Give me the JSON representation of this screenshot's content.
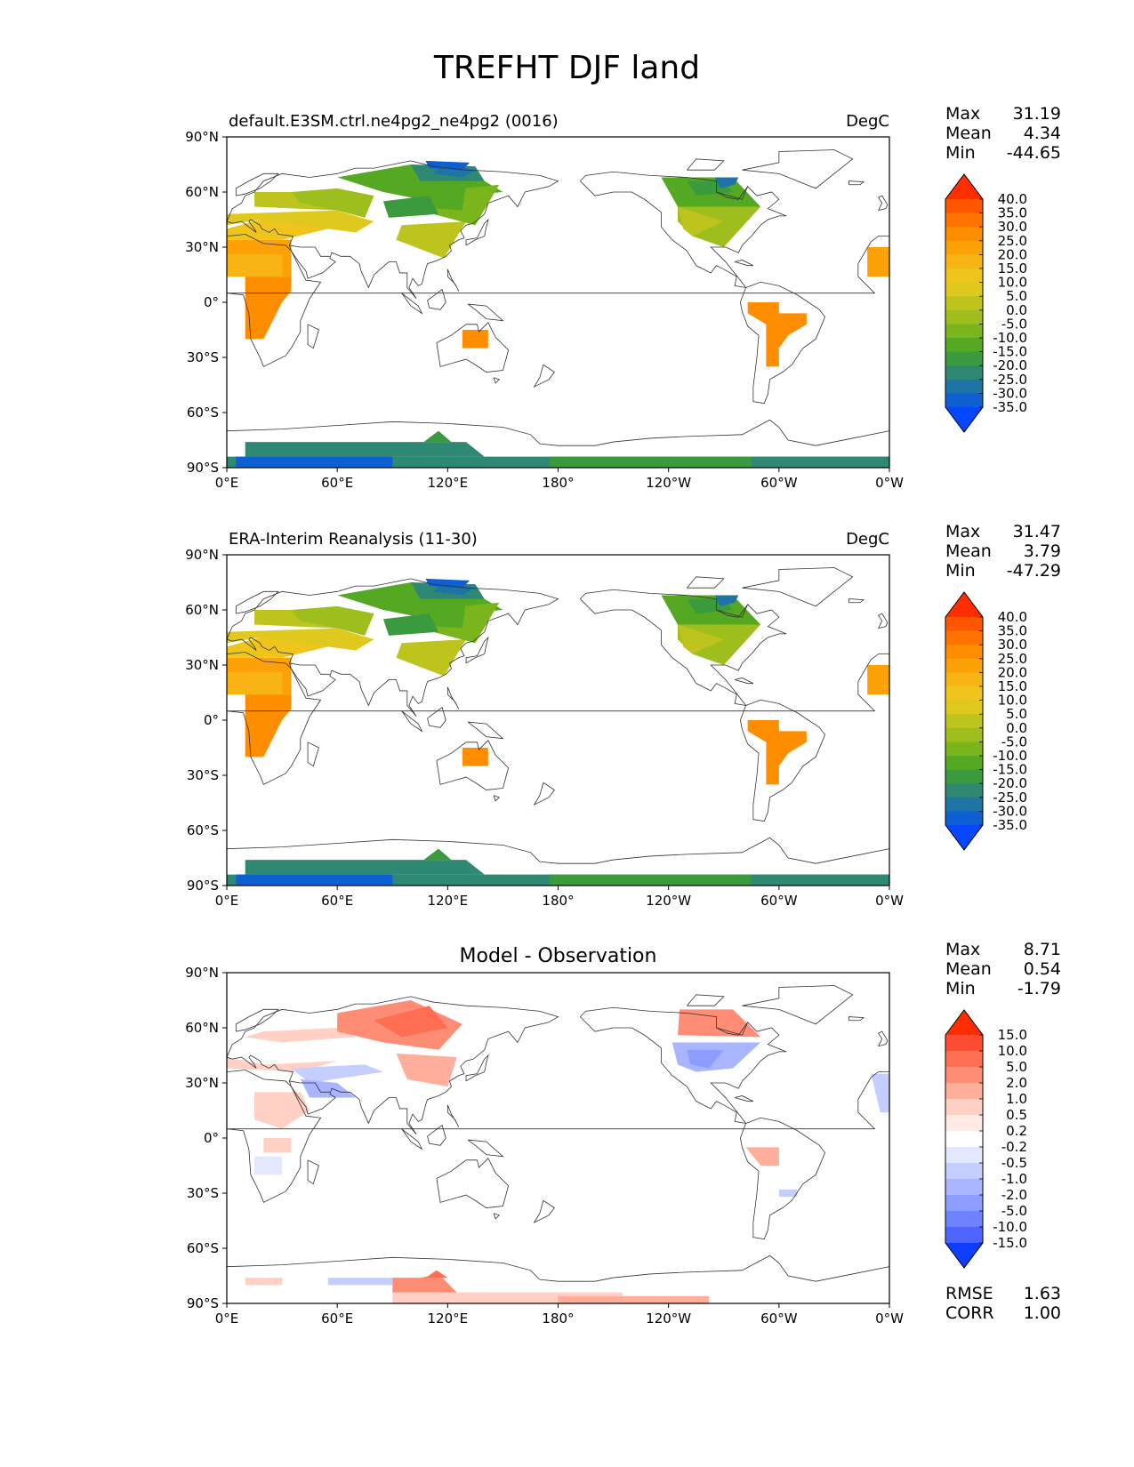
{
  "figure": {
    "title": "TREFHT DJF land"
  },
  "units": "DegC",
  "lat_ticks": [
    "90°N",
    "60°N",
    "30°N",
    "0°",
    "30°S",
    "60°S",
    "90°S"
  ],
  "lon_ticks": [
    "0°E",
    "60°E",
    "120°E",
    "180°",
    "120°W",
    "60°W",
    "0°W"
  ],
  "colorbars": {
    "main": {
      "labels": [
        "40.0",
        "35.0",
        "30.0",
        "25.0",
        "20.0",
        "15.0",
        "10.0",
        "5.0",
        "0.0",
        "-5.0",
        "-10.0",
        "-15.0",
        "-20.0",
        "-25.0",
        "-30.0",
        "-35.0"
      ],
      "colors": [
        "#ff2d00",
        "#ff5600",
        "#ff7400",
        "#ff8d00",
        "#fca208",
        "#f8b414",
        "#efc51d",
        "#dfc91e",
        "#bec41e",
        "#9dbe1c",
        "#7bb51c",
        "#55a922",
        "#3a9a3d",
        "#2f8873",
        "#1e74a4",
        "#0e5fd2",
        "#0447ff"
      ]
    },
    "diff": {
      "labels": [
        "15.0",
        "10.0",
        "5.0",
        "2.0",
        "1.0",
        "0.5",
        "0.2",
        "-0.2",
        "-0.5",
        "-1.0",
        "-2.0",
        "-5.0",
        "-10.0",
        "-15.0"
      ],
      "colors": [
        "#ff2d00",
        "#ff4c33",
        "#ff6d52",
        "#ff8c74",
        "#ffae9b",
        "#ffd0c3",
        "#ffeae4",
        "#ffffff",
        "#e3e8ff",
        "#c5cfff",
        "#a9b6ff",
        "#8c9cff",
        "#6f82ff",
        "#4d64ff",
        "#0d3dff"
      ]
    }
  },
  "panels": [
    {
      "id": "test",
      "title_left": "default.E3SM.ctrl.ne4pg2_ne4pg2 (0016)",
      "title_center": "",
      "title_right": "DegC",
      "stats": [
        [
          "Max",
          "31.19"
        ],
        [
          "Mean",
          "4.34"
        ],
        [
          "Min",
          "-44.65"
        ]
      ],
      "colorbar": "main"
    },
    {
      "id": "ref",
      "title_left": "ERA-Interim Reanalysis (11-30)",
      "title_center": "",
      "title_right": "DegC",
      "stats": [
        [
          "Max",
          "31.47"
        ],
        [
          "Mean",
          "3.79"
        ],
        [
          "Min",
          "-47.29"
        ]
      ],
      "colorbar": "main"
    },
    {
      "id": "diff",
      "title_left": "",
      "title_center": "Model - Observation",
      "title_right": "",
      "stats": [
        [
          "Max",
          "8.71"
        ],
        [
          "Mean",
          "0.54"
        ],
        [
          "Min",
          "-1.79"
        ]
      ],
      "colorbar": "diff",
      "metrics": [
        [
          "RMSE",
          "1.63"
        ],
        [
          "CORR",
          "1.00"
        ]
      ]
    }
  ]
}
